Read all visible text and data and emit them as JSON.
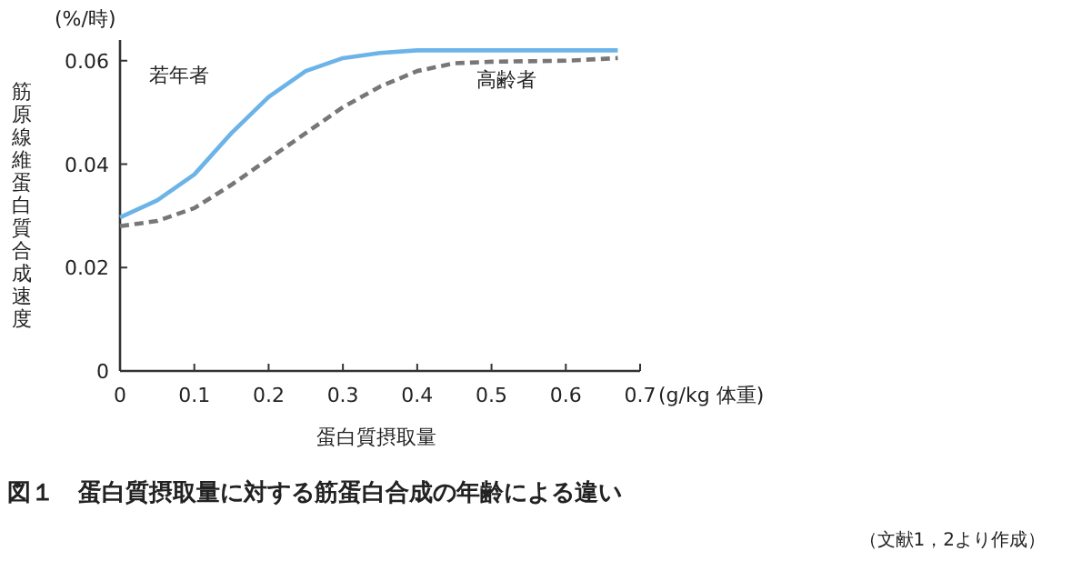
{
  "chart_data": {
    "type": "line",
    "title": "図１　蛋白質摂取量に対する筋蛋白合成の年齢による違い",
    "xlabel": "蛋白質摂取量",
    "ylabel": "筋原線維蛋白質合成速度",
    "annotations": [
      "(%/時)",
      "(g/kg 体重)",
      "（文献1，2より作成）"
    ],
    "xlim": [
      0,
      0.7
    ],
    "ylim": [
      0,
      0.064
    ],
    "xticks": [
      0,
      0.1,
      0.2,
      0.3,
      0.4,
      0.5,
      0.6,
      0.7
    ],
    "yticks": [
      0,
      0.02,
      0.04,
      0.06
    ],
    "grid": false,
    "series": [
      {
        "name": "若年者",
        "color": "#6cb4e8",
        "line_style": "solid",
        "x": [
          0,
          0.05,
          0.1,
          0.15,
          0.2,
          0.25,
          0.3,
          0.35,
          0.4,
          0.5,
          0.6,
          0.67
        ],
        "values": [
          0.0297,
          0.033,
          0.038,
          0.046,
          0.053,
          0.058,
          0.0605,
          0.0615,
          0.062,
          0.062,
          0.062,
          0.062
        ]
      },
      {
        "name": "高齢者",
        "color": "#777777",
        "line_style": "dashed",
        "x": [
          0,
          0.05,
          0.1,
          0.15,
          0.2,
          0.25,
          0.3,
          0.35,
          0.4,
          0.45,
          0.5,
          0.6,
          0.67
        ],
        "values": [
          0.028,
          0.029,
          0.0315,
          0.036,
          0.041,
          0.046,
          0.051,
          0.055,
          0.058,
          0.0595,
          0.0598,
          0.06,
          0.0605
        ]
      }
    ]
  }
}
